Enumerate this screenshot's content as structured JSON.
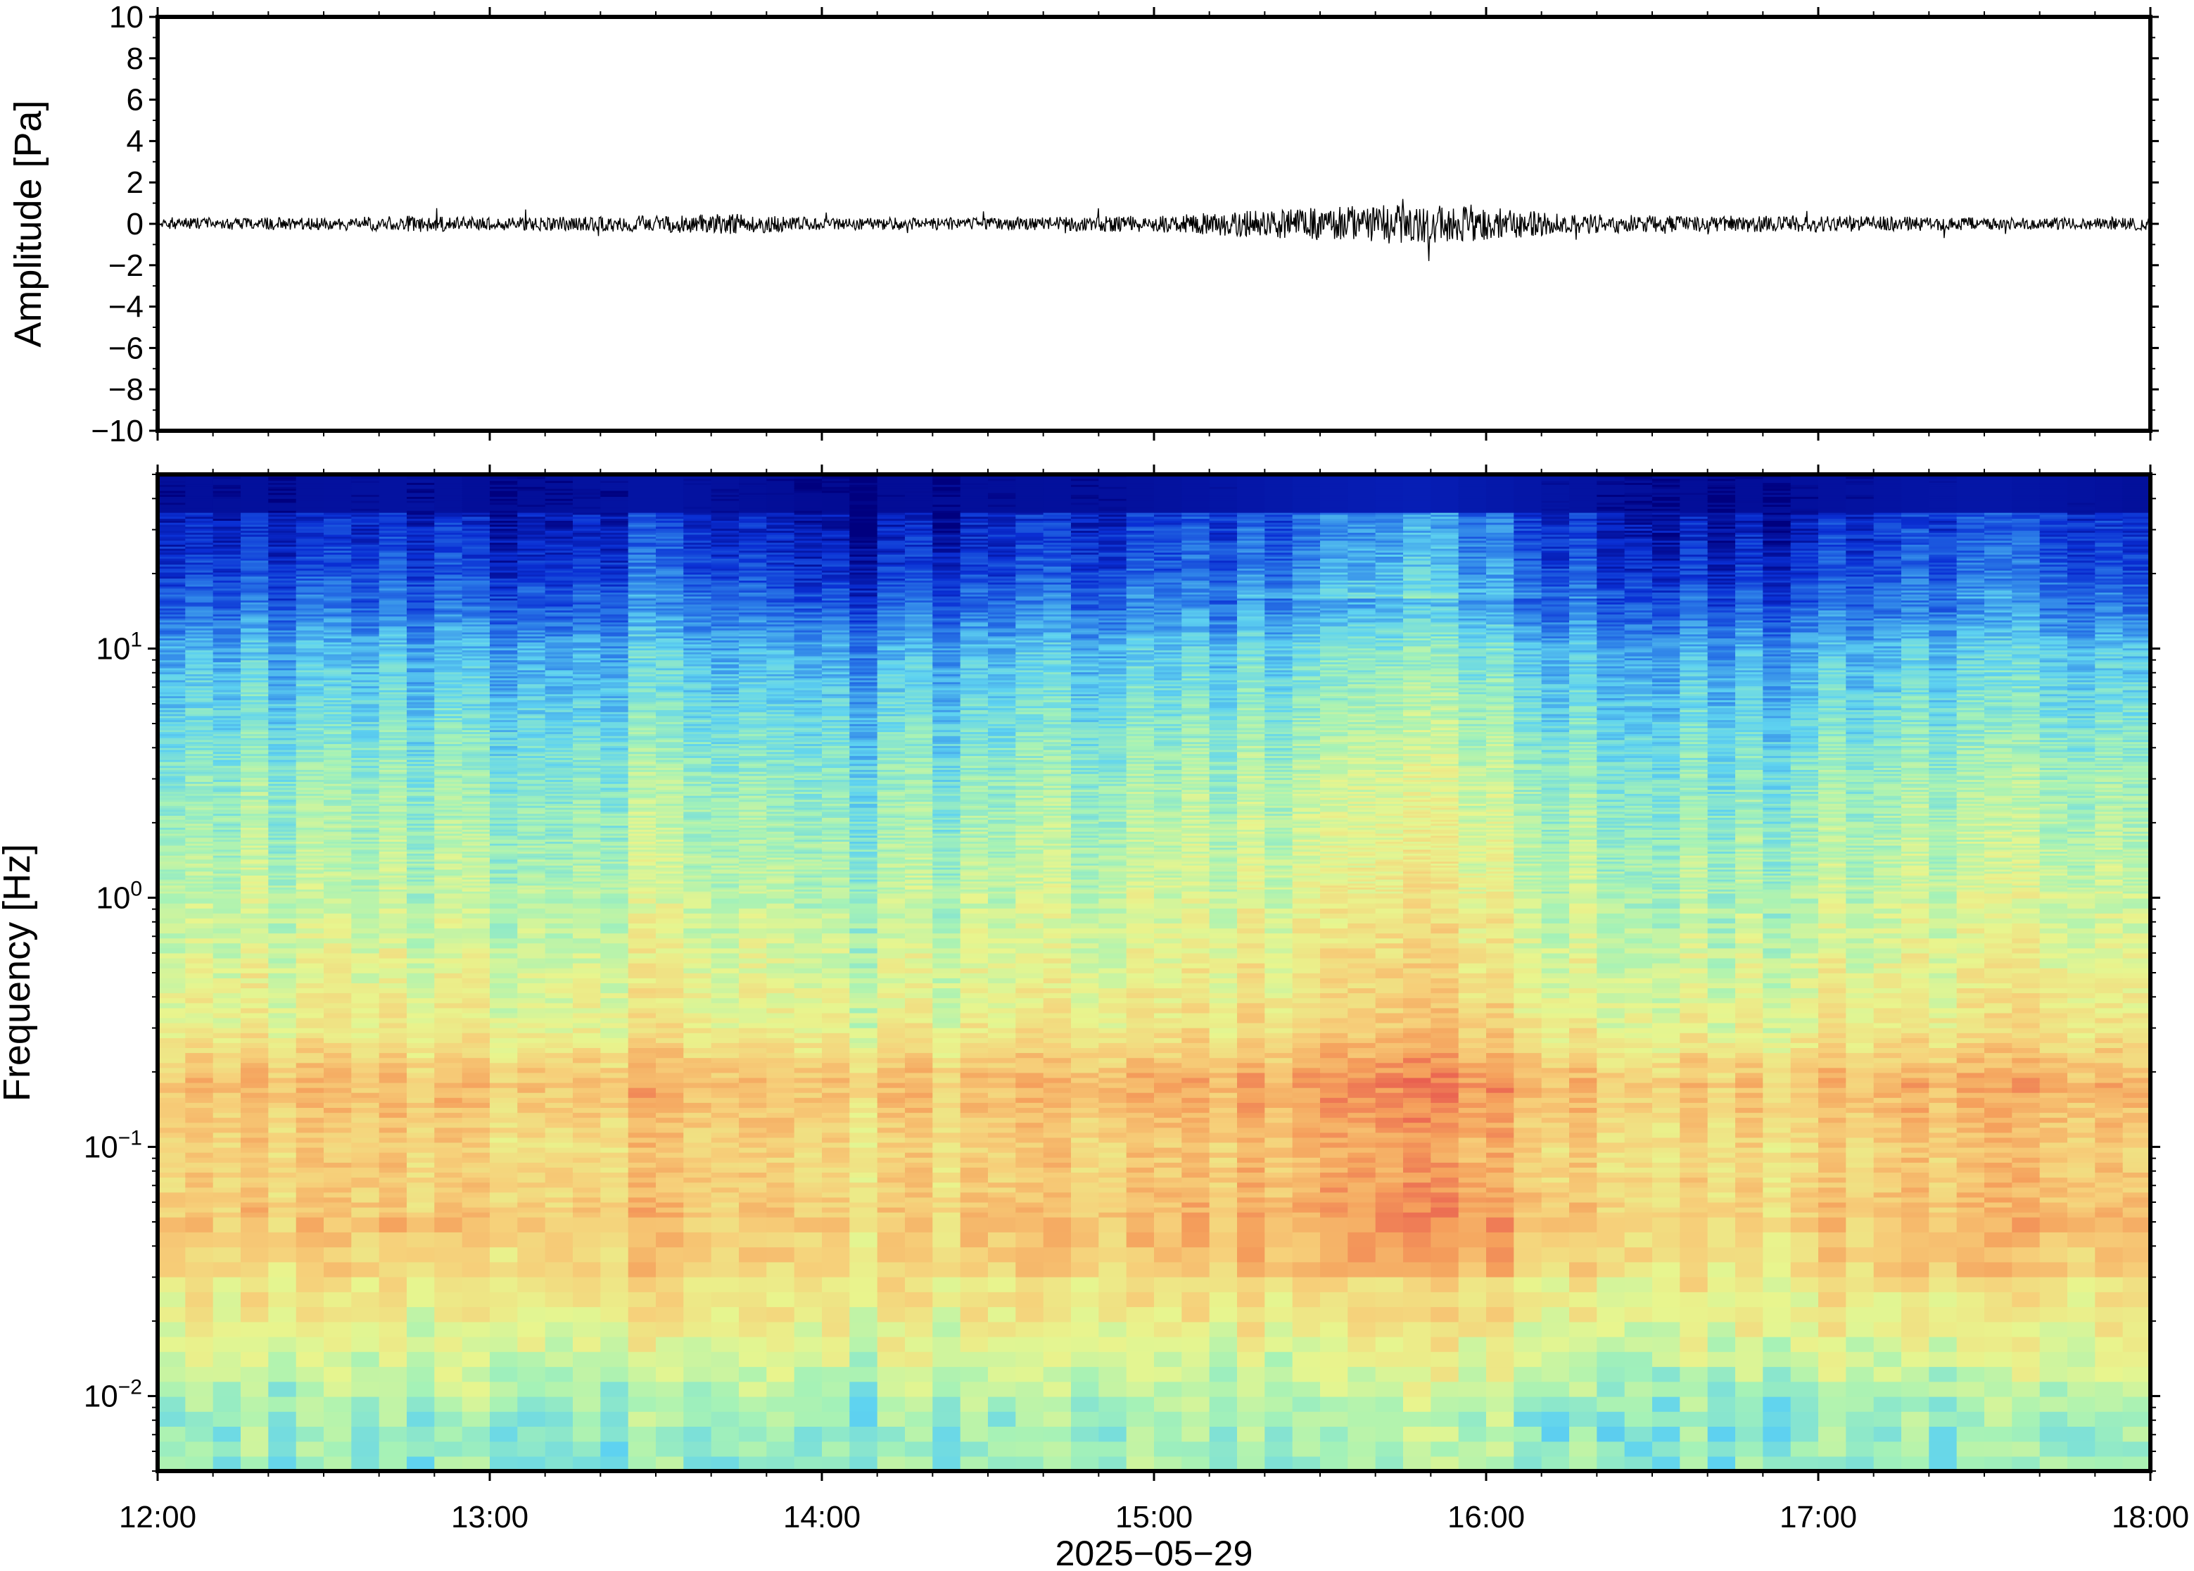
{
  "chart_data": [
    {
      "type": "line",
      "panel": "waveform",
      "ylabel": "Amplitude [Pa]",
      "xlabel": "",
      "ylim": [
        -10,
        10
      ],
      "yticks": [
        10,
        8,
        6,
        4,
        2,
        0,
        -2,
        -4,
        -6,
        -8,
        -10
      ],
      "ytick_labels": [
        "10",
        "8",
        "6",
        "4",
        "2",
        "0",
        "−2",
        "−4",
        "−6",
        "−8",
        "−10"
      ],
      "x_range": [
        "12:00",
        "18:00"
      ],
      "series": [
        {
          "color": "#000000",
          "envelope_hours": [
            0,
            0.5,
            0.8,
            1.0,
            1.5,
            1.75,
            2.0,
            2.5,
            3.0,
            3.25,
            3.5,
            3.75,
            4.0,
            4.25,
            4.5,
            5.0,
            5.5,
            6.0
          ],
          "envelope_amplitude": [
            0.3,
            0.3,
            0.4,
            0.3,
            0.4,
            0.5,
            0.3,
            0.3,
            0.4,
            0.6,
            0.8,
            1.0,
            0.8,
            0.5,
            0.4,
            0.4,
            0.3,
            0.3
          ],
          "min": -1.8,
          "max": 1.2
        }
      ]
    },
    {
      "type": "heatmap",
      "panel": "spectrogram",
      "ylabel": "Frequency [Hz]",
      "xlabel": "2025−05−29",
      "y_scale": "log",
      "ylim": [
        0.005,
        50
      ],
      "yticks": [
        0.01,
        0.1,
        1,
        10
      ],
      "ytick_labels": [
        {
          "base": "10",
          "exp": "−2"
        },
        {
          "base": "10",
          "exp": "−1"
        },
        {
          "base": "10",
          "exp": "0"
        },
        {
          "base": "10",
          "exp": "1"
        }
      ],
      "xticks": [
        "12:00",
        "13:00",
        "14:00",
        "15:00",
        "16:00",
        "17:00",
        "18:00"
      ],
      "colormap": [
        "#00007f",
        "#0a2fd4",
        "#2c7ee8",
        "#5fd3f0",
        "#a6f2b6",
        "#e8f58e",
        "#f6d07a",
        "#f5a05c",
        "#e8584f"
      ],
      "band_profile": {
        "frequency_hz": [
          40,
          20,
          10,
          3,
          1,
          0.3,
          0.18,
          0.1,
          0.05,
          0.02,
          0.008
        ],
        "intensity": [
          0.0,
          0.08,
          0.28,
          0.42,
          0.5,
          0.6,
          0.75,
          0.68,
          0.72,
          0.62,
          0.45
        ]
      },
      "column_activity": {
        "hours": [
          0,
          0.3,
          0.8,
          1.0,
          1.5,
          2.0,
          2.5,
          3.0,
          3.3,
          3.6,
          3.8,
          4.0,
          4.3,
          4.7,
          5.0,
          5.5,
          6.0
        ],
        "relative_level": [
          0.1,
          0.12,
          0.2,
          0.05,
          0.25,
          0.0,
          0.1,
          0.15,
          0.3,
          0.45,
          0.5,
          0.35,
          0.2,
          0.05,
          0.15,
          0.3,
          0.1
        ]
      }
    }
  ]
}
